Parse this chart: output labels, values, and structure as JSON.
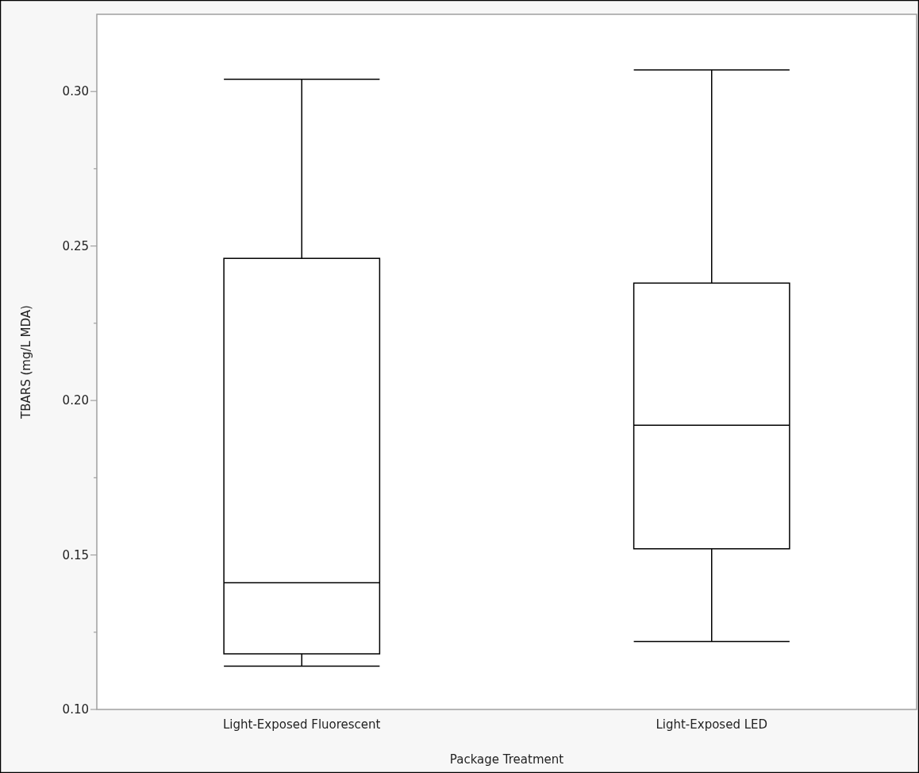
{
  "chart_data": {
    "type": "box",
    "xlabel": "Package Treatment",
    "ylabel": "TBARS (mg/L MDA)",
    "categories": [
      "Light-Exposed Fluorescent",
      "Light-Exposed LED"
    ],
    "boxes": [
      {
        "low": 0.114,
        "q1": 0.118,
        "median": 0.141,
        "q3": 0.246,
        "high": 0.304
      },
      {
        "low": 0.122,
        "q1": 0.152,
        "median": 0.192,
        "q3": 0.238,
        "high": 0.307
      }
    ],
    "color": "#000000",
    "ylim": [
      0.1,
      0.325
    ],
    "yticks": [
      {
        "value": 0.1,
        "label": "0.10"
      },
      {
        "value": 0.125,
        "label": null
      },
      0.15,
      {
        "value": 0.175,
        "label": null
      },
      {
        "value": 0.2,
        "label": "0.20"
      },
      {
        "value": 0.225,
        "label": null
      },
      0.25,
      {
        "value": 0.275,
        "label": null
      },
      {
        "value": 0.3,
        "label": "0.30"
      }
    ],
    "grid": false
  }
}
